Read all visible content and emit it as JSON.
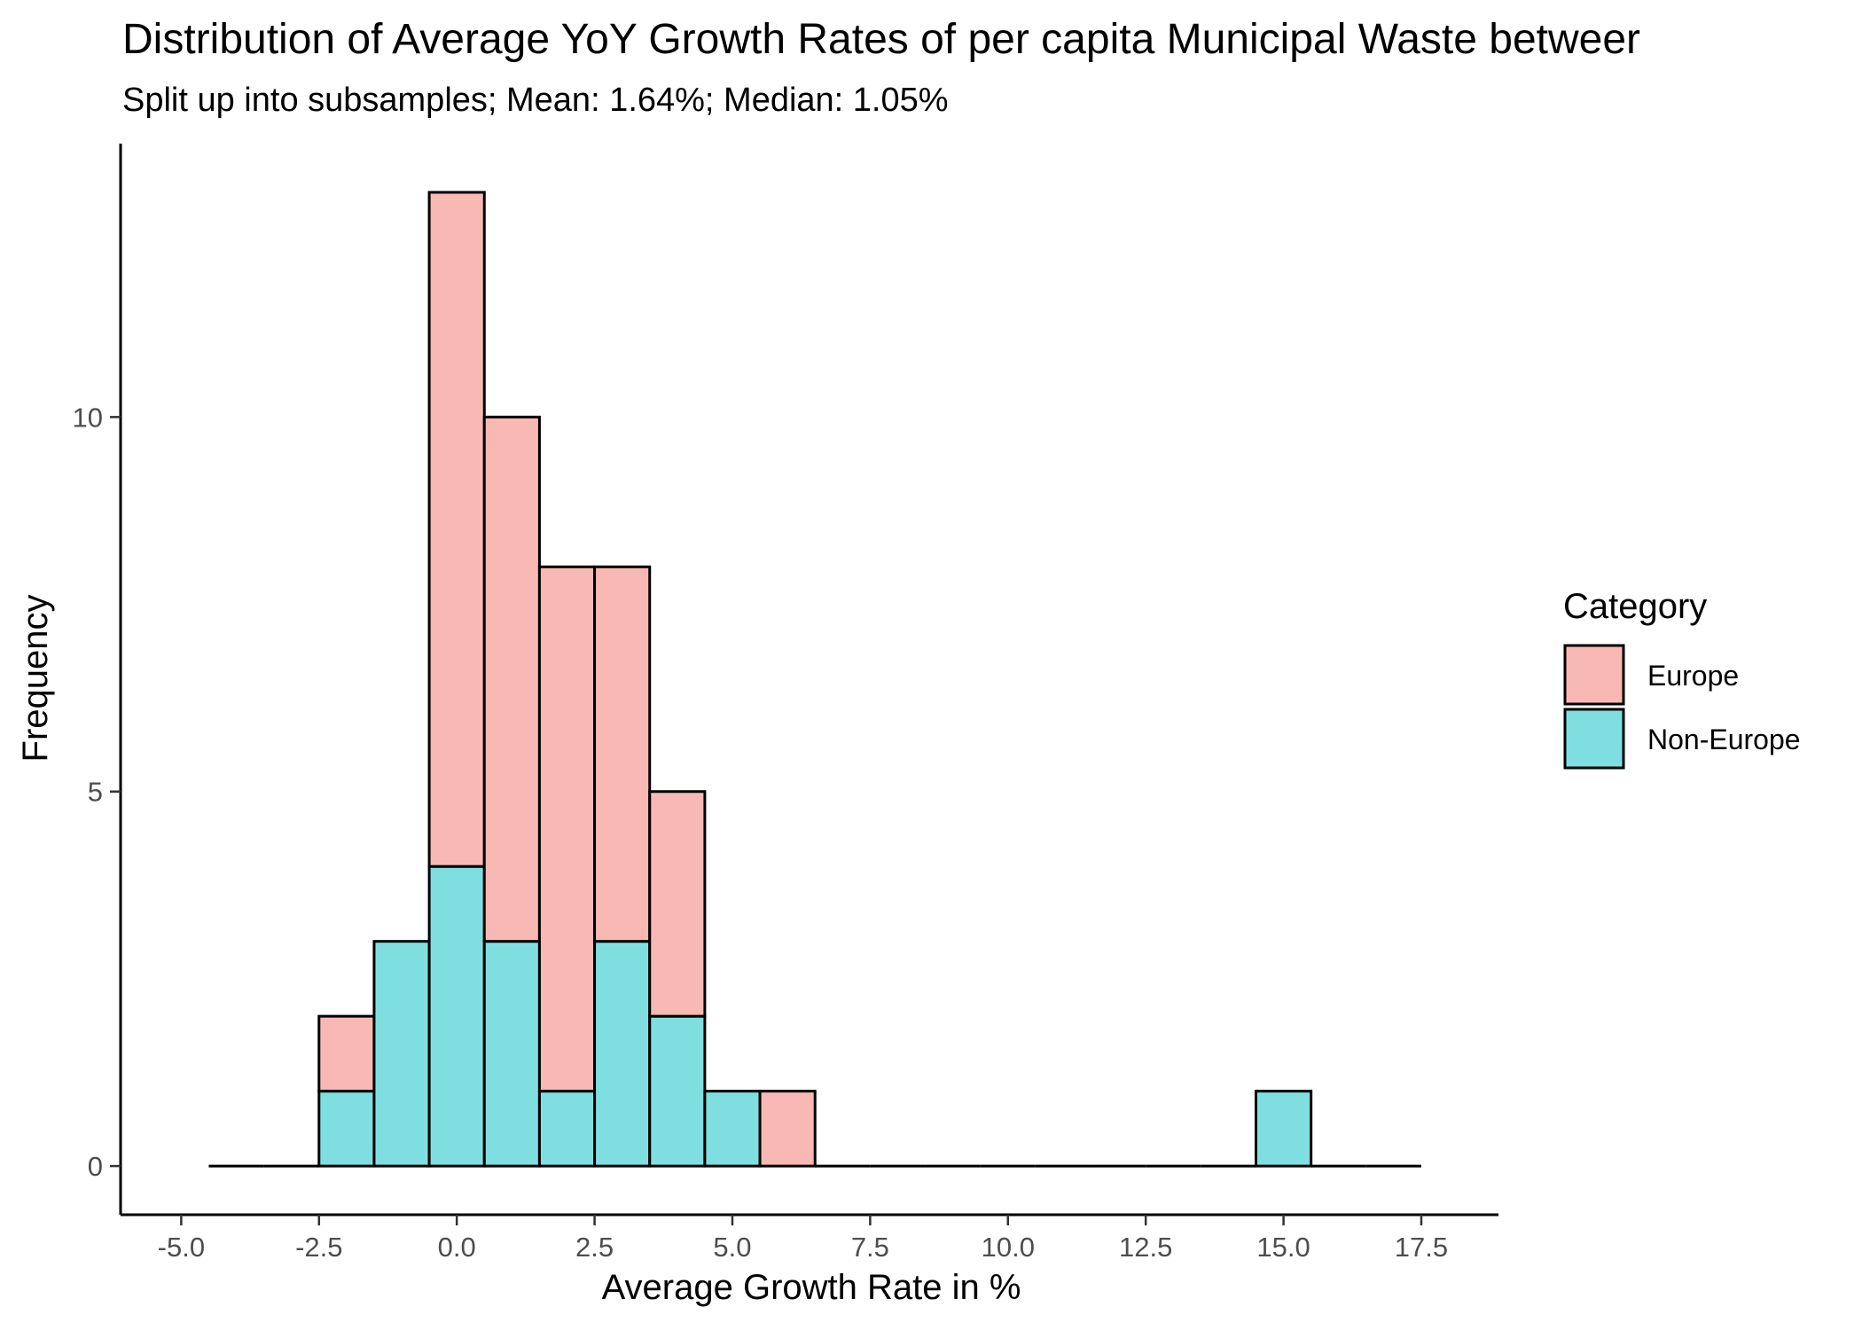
{
  "chart_data": {
    "type": "bar",
    "subtype": "stacked-histogram",
    "title": "Distribution of Average YoY Growth Rates of per capita Municipal Waste betweer",
    "subtitle": "Split up into subsamples; Mean: 1.64%; Median: 1.05%",
    "xlabel": "Average Growth Rate in %",
    "ylabel": "Frequency",
    "xlim": [
      -6.1,
      18.9
    ],
    "ylim": [
      -0.65,
      13.65
    ],
    "x_ticks": [
      -5.0,
      -2.5,
      0.0,
      2.5,
      5.0,
      7.5,
      10.0,
      12.5,
      15.0,
      17.5
    ],
    "x_tick_labels": [
      "-5.0",
      "-2.5",
      "0.0",
      "2.5",
      "5.0",
      "7.5",
      "10.0",
      "12.5",
      "15.0",
      "17.5"
    ],
    "y_ticks": [
      0,
      5,
      10
    ],
    "y_tick_labels": [
      "0",
      "5",
      "10"
    ],
    "bin_width": 1,
    "bin_centers": [
      -4,
      -3,
      -2,
      -1,
      0,
      1,
      2,
      3,
      4,
      5,
      6,
      7,
      8,
      9,
      10,
      11,
      12,
      13,
      14,
      15,
      16,
      17
    ],
    "series": [
      {
        "name": "Non-Europe",
        "color": "#7fdfe0",
        "values": [
          0,
          0,
          1,
          3,
          4,
          3,
          1,
          3,
          2,
          1,
          0,
          0,
          0,
          0,
          0,
          0,
          0,
          0,
          0,
          1,
          0,
          0
        ]
      },
      {
        "name": "Europe",
        "color": "#f8b8b4",
        "values": [
          0,
          0,
          1,
          0,
          9,
          7,
          7,
          5,
          3,
          0,
          1,
          0,
          0,
          0,
          0,
          0,
          0,
          0,
          0,
          0,
          0,
          0
        ]
      }
    ],
    "legend": {
      "title": "Category",
      "entries": [
        "Europe",
        "Non-Europe"
      ],
      "position": "right"
    },
    "grid": false,
    "bar_outline_color": "#000000"
  }
}
